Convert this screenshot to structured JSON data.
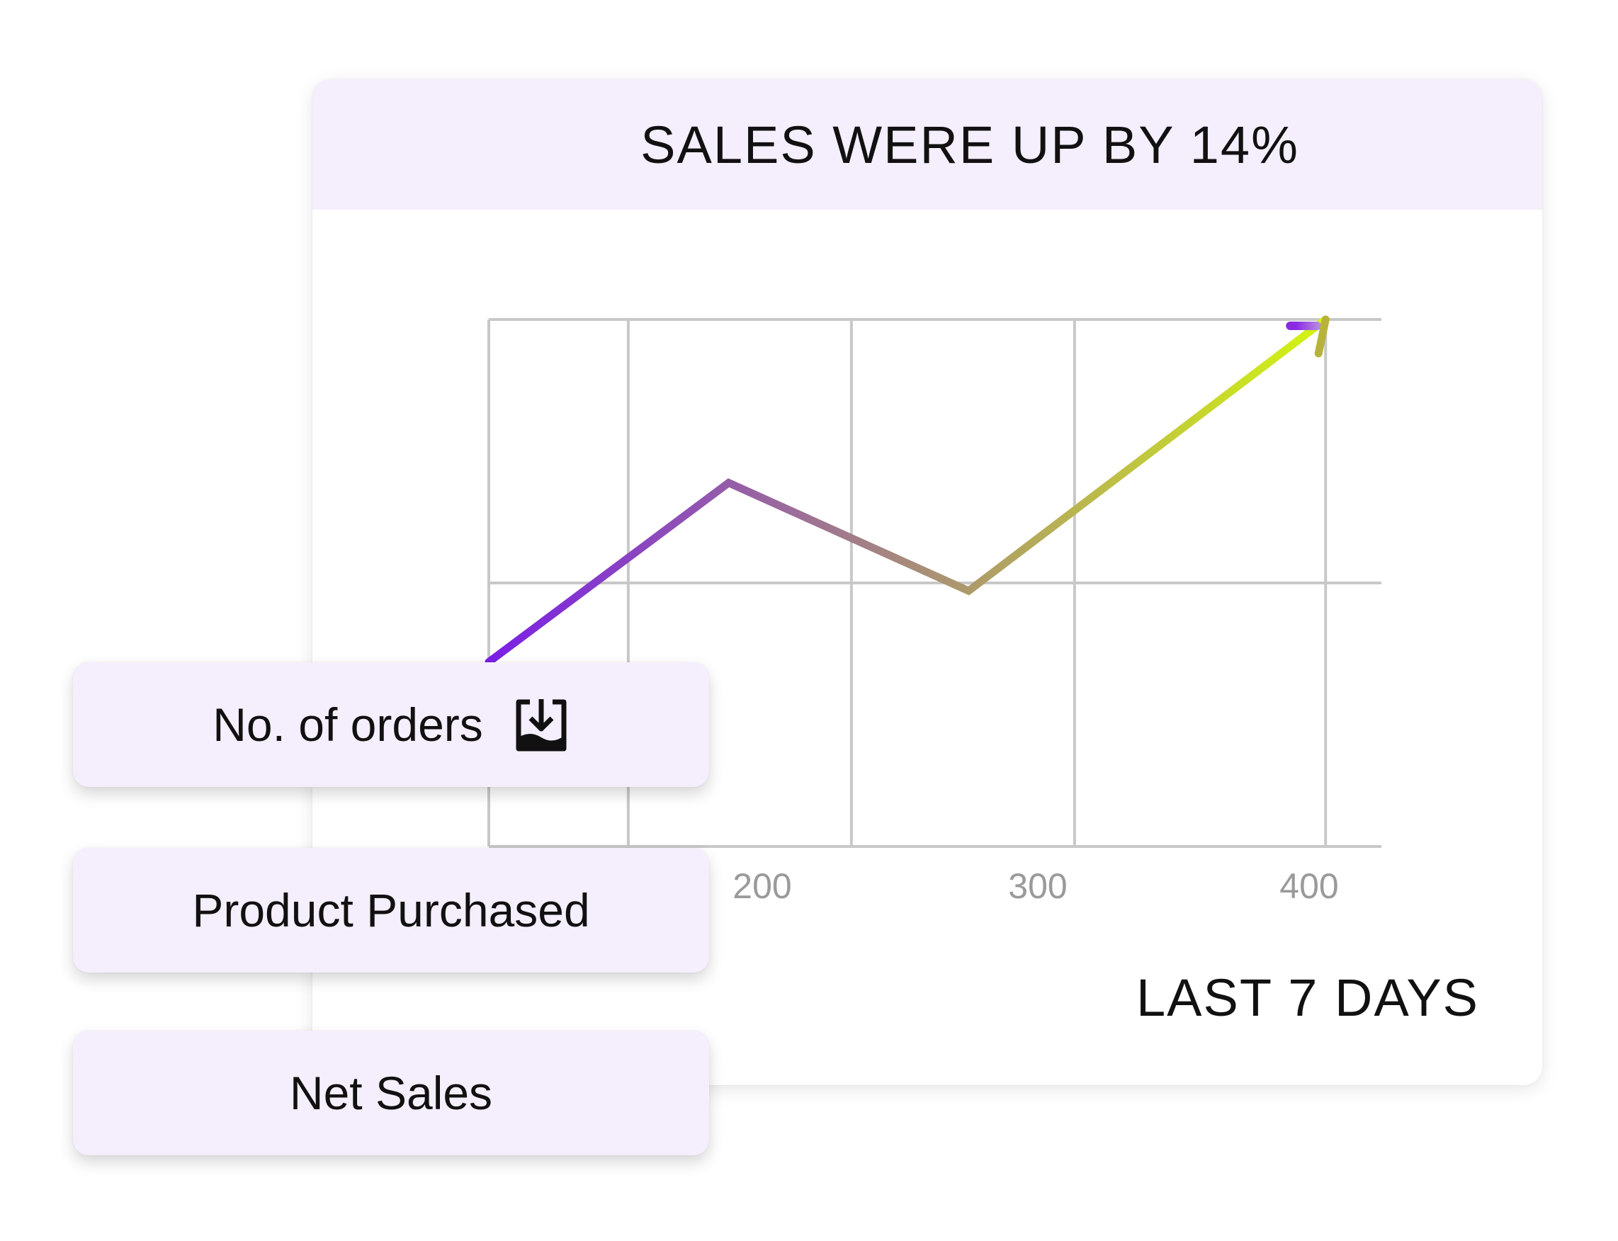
{
  "card": {
    "title": "SALES WERE UP BY 14%",
    "period_label": "LAST 7 DAYS"
  },
  "buttons": [
    {
      "label": "No. of orders",
      "icon": "inbox-download-icon"
    },
    {
      "label": "Product Purchased"
    },
    {
      "label": "Net Sales"
    }
  ],
  "colors": {
    "header_bg": "#f5eefd",
    "pill_bg": "#f5eefd",
    "line_start": "#7b1fe6",
    "line_end": "#d4f70e",
    "grid": "#c8c8c8",
    "tick_label": "#9a9a9a"
  },
  "chart_data": {
    "type": "line",
    "title": "SALES WERE UP BY 14%",
    "xlabel": "",
    "ylabel": "",
    "x_ticks": [
      200,
      300,
      400
    ],
    "xlim": [
      100,
      420
    ],
    "ylim": [
      0,
      2
    ],
    "grid": true,
    "legend": "none",
    "series": [
      {
        "x": [
          100,
          186,
          272,
          400
        ],
        "y": [
          0.7,
          1.38,
          0.97,
          2.0
        ]
      }
    ],
    "arrow_at_end": true
  }
}
